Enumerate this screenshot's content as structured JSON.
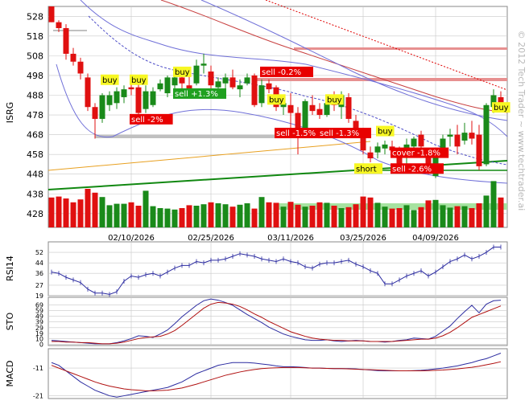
{
  "watermark": "© 2012 Tech Trader ~ www.techtrader.ai",
  "colors": {
    "up": "#1a8a1a",
    "down": "#e01010",
    "buy": "#f7f723",
    "sell": "#e80000",
    "grid": "#c8c8c8",
    "ind_blue": "#2b2ba0",
    "ind_red": "#b01010"
  },
  "chart_data": [
    {
      "type": "candlestick",
      "title": "",
      "ylabel": "ISRG",
      "yticks": [
        428,
        438,
        448,
        458,
        468,
        478,
        488,
        498,
        508,
        518,
        528
      ],
      "ylim": [
        421,
        533
      ],
      "xticks": [
        "02/10/2026",
        "02/25/2026",
        "03/11/2026",
        "03/25/2026",
        "04/09/2026"
      ],
      "xtick_index": [
        11,
        22,
        33,
        43,
        53
      ],
      "candles": [
        {
          "o": 533,
          "h": 533,
          "l": 525,
          "c": 525
        },
        {
          "o": 525,
          "h": 526,
          "l": 520,
          "c": 522
        },
        {
          "o": 522,
          "h": 524,
          "l": 506,
          "c": 509
        },
        {
          "o": 509,
          "h": 512,
          "l": 503,
          "c": 505
        },
        {
          "o": 505,
          "h": 507,
          "l": 496,
          "c": 499
        },
        {
          "o": 497,
          "h": 499,
          "l": 480,
          "c": 482
        },
        {
          "o": 482,
          "h": 484,
          "l": 466,
          "c": 476
        },
        {
          "o": 476,
          "h": 489,
          "l": 474,
          "c": 488
        },
        {
          "o": 483,
          "h": 490,
          "l": 480,
          "c": 488
        },
        {
          "o": 484,
          "h": 492,
          "l": 481,
          "c": 490
        },
        {
          "o": 487,
          "h": 493,
          "l": 484,
          "c": 491
        },
        {
          "o": 492,
          "h": 494,
          "l": 488,
          "c": 491
        },
        {
          "o": 492,
          "h": 496,
          "l": 477,
          "c": 479
        },
        {
          "o": 481,
          "h": 493,
          "l": 479,
          "c": 490
        },
        {
          "o": 483,
          "h": 492,
          "l": 482,
          "c": 490
        },
        {
          "o": 491,
          "h": 496,
          "l": 490,
          "c": 494
        },
        {
          "o": 489,
          "h": 498,
          "l": 487,
          "c": 497
        },
        {
          "o": 493,
          "h": 500,
          "l": 491,
          "c": 497
        },
        {
          "o": 497,
          "h": 501,
          "l": 490,
          "c": 494
        },
        {
          "o": 493,
          "h": 498,
          "l": 488,
          "c": 491
        },
        {
          "o": 494,
          "h": 506,
          "l": 493,
          "c": 503
        },
        {
          "o": 503,
          "h": 509,
          "l": 499,
          "c": 504
        },
        {
          "o": 500,
          "h": 503,
          "l": 491,
          "c": 493
        },
        {
          "o": 492,
          "h": 497,
          "l": 489,
          "c": 495
        },
        {
          "o": 494,
          "h": 499,
          "l": 490,
          "c": 497
        },
        {
          "o": 497,
          "h": 501,
          "l": 491,
          "c": 492
        },
        {
          "o": 491,
          "h": 496,
          "l": 487,
          "c": 493
        },
        {
          "o": 494,
          "h": 499,
          "l": 493,
          "c": 497
        },
        {
          "o": 498,
          "h": 499,
          "l": 482,
          "c": 483
        },
        {
          "o": 484,
          "h": 496,
          "l": 482,
          "c": 493
        },
        {
          "o": 494,
          "h": 496,
          "l": 489,
          "c": 491
        },
        {
          "o": 492,
          "h": 493,
          "l": 480,
          "c": 482
        },
        {
          "o": 482,
          "h": 488,
          "l": 478,
          "c": 484
        },
        {
          "o": 483,
          "h": 489,
          "l": 470,
          "c": 479
        },
        {
          "o": 479,
          "h": 482,
          "l": 458,
          "c": 470
        },
        {
          "o": 470,
          "h": 486,
          "l": 468,
          "c": 485
        },
        {
          "o": 483,
          "h": 488,
          "l": 478,
          "c": 480
        },
        {
          "o": 481,
          "h": 484,
          "l": 476,
          "c": 478
        },
        {
          "o": 478,
          "h": 485,
          "l": 477,
          "c": 484
        },
        {
          "o": 484,
          "h": 490,
          "l": 480,
          "c": 483
        },
        {
          "o": 482,
          "h": 490,
          "l": 476,
          "c": 488
        },
        {
          "o": 487,
          "h": 489,
          "l": 474,
          "c": 476
        },
        {
          "o": 475,
          "h": 478,
          "l": 467,
          "c": 469
        },
        {
          "o": 468,
          "h": 471,
          "l": 458,
          "c": 460
        },
        {
          "o": 459,
          "h": 462,
          "l": 454,
          "c": 456
        },
        {
          "o": 459,
          "h": 464,
          "l": 456,
          "c": 462
        },
        {
          "o": 461,
          "h": 465,
          "l": 458,
          "c": 463
        },
        {
          "o": 462,
          "h": 465,
          "l": 457,
          "c": 460
        },
        {
          "o": 459,
          "h": 462,
          "l": 450,
          "c": 452
        },
        {
          "o": 459,
          "h": 466,
          "l": 452,
          "c": 463
        },
        {
          "o": 462,
          "h": 467,
          "l": 458,
          "c": 466
        },
        {
          "o": 468,
          "h": 470,
          "l": 460,
          "c": 462
        },
        {
          "o": 458,
          "h": 461,
          "l": 448,
          "c": 451
        },
        {
          "o": 447,
          "h": 460,
          "l": 446,
          "c": 458
        },
        {
          "o": 460,
          "h": 468,
          "l": 458,
          "c": 466
        },
        {
          "o": 467,
          "h": 471,
          "l": 462,
          "c": 468
        },
        {
          "o": 468,
          "h": 473,
          "l": 458,
          "c": 462
        },
        {
          "o": 465,
          "h": 474,
          "l": 463,
          "c": 469
        },
        {
          "o": 469,
          "h": 475,
          "l": 463,
          "c": 466
        },
        {
          "o": 468,
          "h": 473,
          "l": 450,
          "c": 452
        },
        {
          "o": 453,
          "h": 484,
          "l": 452,
          "c": 483
        },
        {
          "o": 482,
          "h": 491,
          "l": 479,
          "c": 488
        },
        {
          "o": 487,
          "h": 490,
          "l": 480,
          "c": 482
        }
      ],
      "volume": [
        62,
        64,
        60,
        52,
        58,
        80,
        72,
        63,
        46,
        49,
        49,
        52,
        45,
        76,
        44,
        40,
        39,
        37,
        40,
        46,
        45,
        48,
        52,
        50,
        48,
        43,
        47,
        50,
        39,
        63,
        52,
        51,
        43,
        53,
        47,
        43,
        45,
        52,
        51,
        45,
        40,
        42,
        48,
        64,
        62,
        51,
        43,
        39,
        40,
        46,
        36,
        42,
        56,
        57,
        46,
        41,
        44,
        44,
        40,
        50,
        66,
        96,
        62
      ],
      "signals": [
        {
          "text": "buy",
          "type": "buy",
          "x": 7,
          "y": 494
        },
        {
          "text": "sell -2%",
          "type": "sell",
          "x": 11,
          "y": 474
        },
        {
          "text": "buy",
          "type": "buy",
          "x": 11,
          "y": 494
        },
        {
          "text": "buy",
          "type": "buy",
          "x": 17,
          "y": 498
        },
        {
          "text": "sell +1.3%",
          "type": "sell_green",
          "x": 17,
          "y": 487
        },
        {
          "text": "sell -0.2%",
          "type": "sell",
          "x": 29,
          "y": 498
        },
        {
          "text": "buy",
          "type": "buy",
          "x": 30,
          "y": 484
        },
        {
          "text": "sell -1.5%",
          "type": "sell",
          "x": 31,
          "y": 467
        },
        {
          "text": "sell -1.3%",
          "type": "sell",
          "x": 37,
          "y": 467
        },
        {
          "text": "buy",
          "type": "buy",
          "x": 38,
          "y": 484
        },
        {
          "text": "buy",
          "type": "buy",
          "x": 45,
          "y": 468
        },
        {
          "text": "cover -1.8%",
          "type": "sell",
          "x": 47,
          "y": 457
        },
        {
          "text": "short",
          "type": "buy",
          "x": 42,
          "y": 449
        },
        {
          "text": "sell -2.6%",
          "type": "sell",
          "x": 47,
          "y": 449
        },
        {
          "text": "buy",
          "type": "buy",
          "x": 61,
          "y": 480
        }
      ]
    },
    {
      "type": "line",
      "ylabel": "RSI14",
      "yticks": [
        19,
        27,
        36,
        44,
        52
      ],
      "ylim": [
        19,
        60
      ],
      "series": [
        {
          "values": [
            37,
            36,
            33,
            31,
            29,
            24,
            21,
            21,
            20,
            22,
            30,
            34,
            33,
            35,
            36,
            34,
            37,
            40,
            42,
            42,
            45,
            44,
            46,
            46,
            47,
            49,
            51,
            50,
            49,
            47,
            46,
            45,
            47,
            45,
            44,
            41,
            40,
            43,
            44,
            44,
            45,
            46,
            43,
            41,
            38,
            36,
            28,
            28,
            31,
            34,
            36,
            38,
            34,
            37,
            41,
            45,
            47,
            50,
            47,
            49,
            52,
            56,
            56
          ]
        }
      ]
    },
    {
      "type": "line",
      "ylabel": "STO",
      "yticks": [
        0,
        10,
        19,
        29,
        39,
        49,
        59,
        69
      ],
      "ylim": [
        -2,
        82
      ],
      "series": [
        {
          "values": [
            7,
            6,
            5,
            4,
            3,
            2,
            1,
            1,
            1,
            3,
            6,
            10,
            15,
            14,
            12,
            18,
            25,
            36,
            48,
            58,
            68,
            76,
            79,
            77,
            73,
            68,
            60,
            52,
            45,
            38,
            30,
            24,
            18,
            14,
            11,
            8,
            7,
            7,
            8,
            6,
            5,
            6,
            7,
            6,
            5,
            5,
            4,
            5,
            7,
            8,
            11,
            10,
            9,
            14,
            23,
            32,
            45,
            57,
            68,
            55,
            70,
            76,
            77
          ]
        },
        {
          "values": [
            5,
            5,
            4,
            4,
            3,
            3,
            2,
            1,
            1,
            2,
            4,
            7,
            10,
            12,
            13,
            14,
            18,
            24,
            33,
            43,
            53,
            63,
            70,
            73,
            72,
            70,
            66,
            60,
            53,
            47,
            40,
            34,
            28,
            22,
            18,
            14,
            11,
            9,
            8,
            7,
            7,
            6,
            6,
            6,
            5,
            5,
            5,
            5,
            6,
            7,
            8,
            9,
            9,
            11,
            15,
            21,
            29,
            38,
            47,
            52,
            57,
            62,
            67
          ]
        }
      ]
    },
    {
      "type": "line",
      "ylabel": "MACD",
      "yticks": [
        -21,
        -11
      ],
      "ylim": [
        -22,
        -4
      ],
      "series": [
        {
          "values": [
            -9,
            -10,
            -12,
            -14,
            -16,
            -17.5,
            -19,
            -20,
            -21,
            -21.5,
            -21,
            -20.5,
            -20,
            -19.5,
            -19,
            -18.5,
            -18,
            -17,
            -16,
            -14.5,
            -13,
            -12,
            -11,
            -10,
            -9.5,
            -9,
            -9,
            -9,
            -9.2,
            -9.5,
            -9.8,
            -10.2,
            -10.5,
            -10.5,
            -10.6,
            -10.8,
            -11,
            -11,
            -11.1,
            -11.2,
            -11.2,
            -11.2,
            -11.3,
            -11.5,
            -11.7,
            -11.9,
            -12,
            -12,
            -12,
            -12,
            -11.9,
            -11.8,
            -11.6,
            -11.3,
            -11,
            -10.6,
            -10.2,
            -9.6,
            -9,
            -8.2,
            -7.6,
            -6.6,
            -5.6
          ]
        },
        {
          "values": [
            -10,
            -11,
            -12,
            -13,
            -14,
            -15,
            -16,
            -16.8,
            -17.5,
            -18,
            -18.5,
            -18.8,
            -19,
            -19.2,
            -19.2,
            -19.1,
            -19,
            -18.6,
            -18.2,
            -17.5,
            -16.8,
            -16,
            -15.2,
            -14.4,
            -13.6,
            -13,
            -12.4,
            -11.9,
            -11.5,
            -11.2,
            -11,
            -10.9,
            -10.8,
            -10.8,
            -10.8,
            -10.9,
            -11,
            -11,
            -11.1,
            -11.2,
            -11.2,
            -11.3,
            -11.4,
            -11.5,
            -11.6,
            -11.7,
            -11.8,
            -11.9,
            -12,
            -12,
            -12,
            -12,
            -11.9,
            -11.8,
            -11.7,
            -11.5,
            -11.3,
            -11,
            -10.7,
            -10.3,
            -9.8,
            -9.3,
            -8.7
          ]
        }
      ]
    }
  ]
}
